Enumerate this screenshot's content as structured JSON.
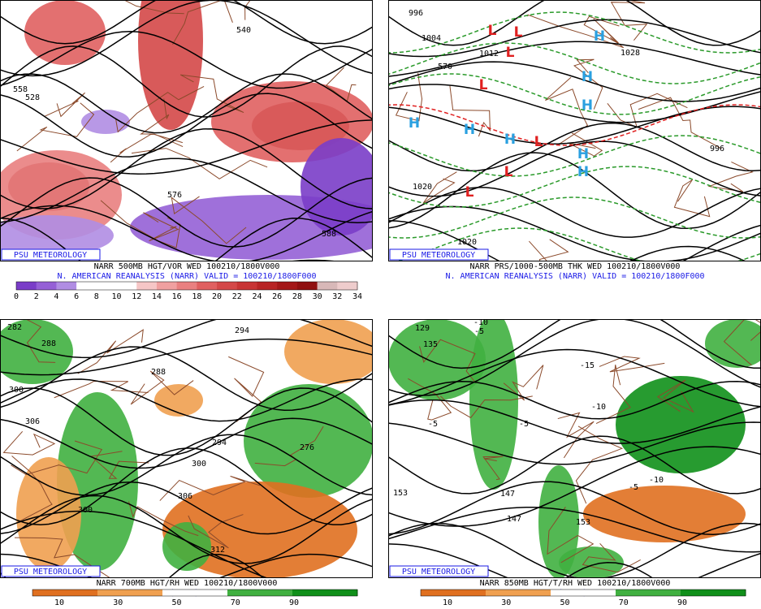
{
  "panels": [
    {
      "logo": "PSU METEOROLOGY",
      "caption": "NARR 500MB HGT/VOR WED 100210/1800V000",
      "subcaption": "N. AMERICAN REANALYSIS (NARR) VALID = 100210/1800F000",
      "colorbar": {
        "ticks": [
          0,
          2,
          4,
          6,
          8,
          10,
          12,
          14,
          16,
          18,
          20,
          22,
          24,
          26,
          28,
          30,
          32,
          34
        ],
        "colors": [
          "#7a3dc8",
          "#9560d6",
          "#b08de3",
          "#ffffff",
          "#ffffff",
          "#ffffff",
          "#f6c6c6",
          "#f0a0a0",
          "#e98080",
          "#e06060",
          "#d44848",
          "#c83434",
          "#b82424",
          "#a41818",
          "#901010",
          "#d8b8b8",
          "#eecccc"
        ]
      },
      "contour_labels": [
        "540",
        "528",
        "558",
        "576",
        "588"
      ],
      "symbols": []
    },
    {
      "logo": "PSU METEOROLOGY",
      "caption": "NARR PRS/1000-500MB THK WED 100210/1800V000",
      "subcaption": "N. AMERICAN REANALYSIS (NARR) VALID = 100210/1800F000",
      "contour_labels": [
        "996",
        "1004",
        "1012",
        "1020",
        "1020",
        "570",
        "996",
        "1028"
      ],
      "symbols": [
        "L",
        "L",
        "L",
        "L",
        "L",
        "L",
        "L",
        "H",
        "H",
        "H",
        "H",
        "H",
        "H",
        "H",
        "H"
      ]
    },
    {
      "logo": "PSU METEOROLOGY",
      "caption": "NARR 700MB HGT/RH WED 100210/1800V000",
      "subcaption": "N. AMERICAN REANALYSIS (NARR) VALID = 100210/1800F000",
      "colorbar": {
        "ticks": [
          10,
          30,
          50,
          70,
          90
        ],
        "colors": [
          "#e07020",
          "#f0a050",
          "#ffffff",
          "#40b040",
          "#10901a"
        ]
      },
      "contour_labels": [
        "282",
        "288",
        "294",
        "300",
        "306",
        "288",
        "294",
        "300",
        "306",
        "312",
        "300",
        "276"
      ],
      "symbols": []
    },
    {
      "logo": "PSU METEOROLOGY",
      "caption": "NARR 850MB HGT/T/RH WED 100210/1800V000",
      "subcaption": "N. AMERICAN REANALYSIS (NARR) VALID = 100210/1800F000",
      "colorbar": {
        "ticks": [
          10,
          30,
          50,
          70,
          90
        ],
        "colors": [
          "#e07020",
          "#f0a050",
          "#ffffff",
          "#40b040",
          "#10901a"
        ]
      },
      "contour_labels": [
        "129",
        "135",
        "153",
        "147",
        "147",
        "153",
        "-10",
        "-5",
        "-15",
        "-10",
        "-5",
        "-5",
        "-10",
        "-5"
      ],
      "symbols": []
    }
  ]
}
